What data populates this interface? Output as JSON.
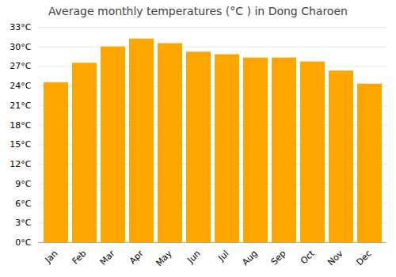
{
  "chart_data": {
    "type": "bar",
    "title": "Average monthly temperatures (°C ) in Dong Charoen",
    "categories": [
      "Jan",
      "Feb",
      "Mar",
      "Apr",
      "May",
      "Jun",
      "Jul",
      "Aug",
      "Sep",
      "Oct",
      "Nov",
      "Dec"
    ],
    "values": [
      24.5,
      27.5,
      30.0,
      31.2,
      30.5,
      29.2,
      28.8,
      28.3,
      28.3,
      27.7,
      26.3,
      24.3
    ],
    "color": "#FFA500",
    "ylim": [
      0,
      33
    ],
    "yticks": [
      {
        "value": 0,
        "label": "0°C"
      },
      {
        "value": 3,
        "label": "3°C"
      },
      {
        "value": 6,
        "label": "6°C"
      },
      {
        "value": 9,
        "label": "9°C"
      },
      {
        "value": 12,
        "label": "12°C"
      },
      {
        "value": 15,
        "label": "15°C"
      },
      {
        "value": 18,
        "label": "18°C"
      },
      {
        "value": 21,
        "label": "21°C"
      },
      {
        "value": 24,
        "label": "24°C"
      },
      {
        "value": 27,
        "label": "27°C"
      },
      {
        "value": 30,
        "label": "30°C"
      },
      {
        "value": 33,
        "label": "33°C"
      }
    ],
    "grid": true
  }
}
